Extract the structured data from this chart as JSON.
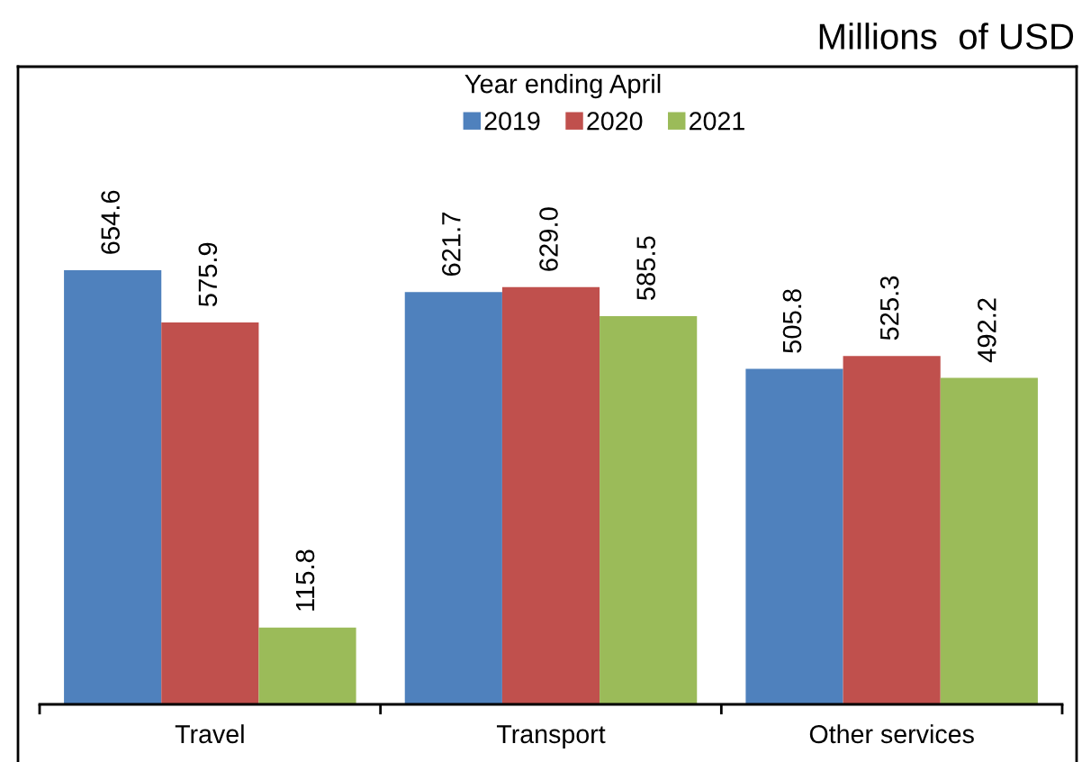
{
  "chart_data": {
    "type": "bar",
    "legend_title": "Year ending April",
    "categories": [
      "Travel",
      "Transport",
      "Other services"
    ],
    "series": [
      {
        "name": "2019",
        "color": "#4f81bd",
        "values": [
          654.6,
          621.7,
          505.8
        ],
        "value_labels": [
          "654.6",
          "621.7",
          "505.8"
        ]
      },
      {
        "name": "2020",
        "color": "#c0504d",
        "values": [
          575.9,
          629.0,
          525.3
        ],
        "value_labels": [
          "575.9",
          "629.0",
          "525.3"
        ]
      },
      {
        "name": "2021",
        "color": "#9bbb59",
        "values": [
          115.8,
          585.5,
          492.2
        ],
        "value_labels": [
          "115.8",
          "585.5",
          "492.2"
        ]
      }
    ],
    "annotations": [
      "Millions  of USD"
    ],
    "legend": "top",
    "grid": false
  }
}
